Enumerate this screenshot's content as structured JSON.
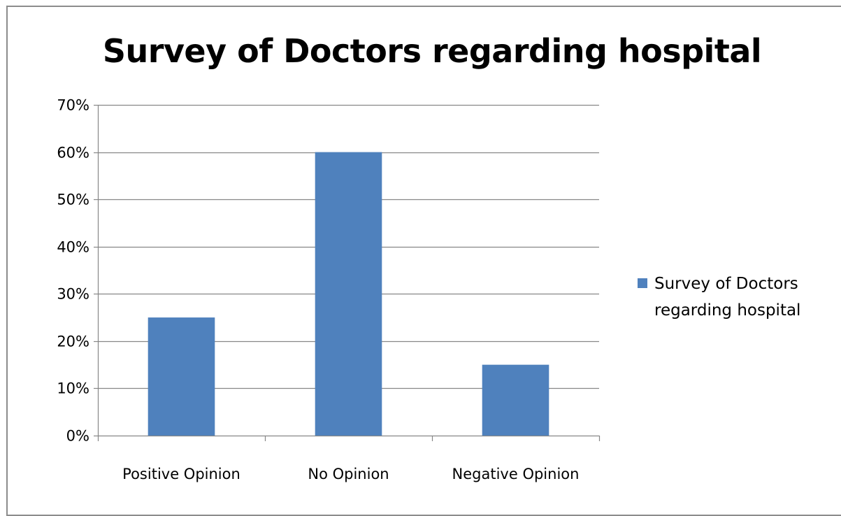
{
  "chart_data": {
    "type": "bar",
    "title": "Survey of Doctors regarding hospital",
    "categories": [
      "Positive Opinion",
      "No Opinion",
      "Negative Opinion"
    ],
    "series": [
      {
        "name": "Survey of Doctors regarding hospital",
        "values": [
          25,
          60,
          15
        ],
        "color": "#4f81bd"
      }
    ],
    "y_ticks": [
      "0%",
      "10%",
      "20%",
      "30%",
      "40%",
      "50%",
      "60%",
      "70%"
    ],
    "ylim": [
      0,
      70
    ],
    "grid": true,
    "legend_position": "right"
  }
}
